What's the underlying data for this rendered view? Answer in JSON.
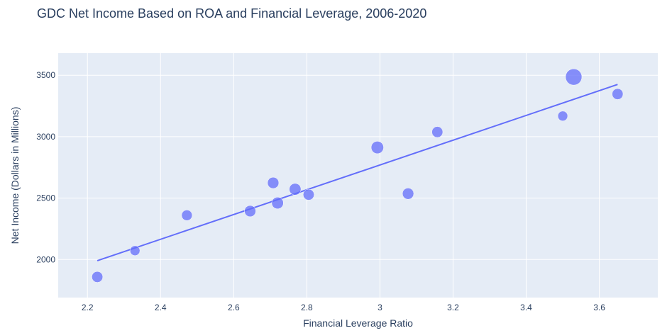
{
  "chart_data": {
    "type": "scatter",
    "title": "GDC Net Income Based on ROA and Financial Leverage, 2006-2020",
    "xlabel": "Financial Leverage Ratio",
    "ylabel": "Net Income (Dollars in Millions)",
    "xlim": [
      2.12,
      3.76
    ],
    "ylim": [
      1690,
      3680
    ],
    "xticks": [
      2.2,
      2.4,
      2.6,
      2.8,
      3,
      3.2,
      3.4,
      3.6
    ],
    "xtick_labels": [
      "2.2",
      "2.4",
      "2.6",
      "2.8",
      "3",
      "3.2",
      "3.4",
      "3.6"
    ],
    "yticks": [
      2000,
      2500,
      3000,
      3500
    ],
    "ytick_labels": [
      "2000",
      "2500",
      "3000",
      "3500"
    ],
    "grid": true,
    "marker_color": "#636efa",
    "line_color": "#636efa",
    "plot_bg": "#e5ecf6",
    "points": [
      {
        "x": 2.227,
        "y": 1858,
        "size": 15.5
      },
      {
        "x": 2.33,
        "y": 2072,
        "size": 14.0
      },
      {
        "x": 2.472,
        "y": 2360,
        "size": 15.0
      },
      {
        "x": 2.645,
        "y": 2394,
        "size": 16.0
      },
      {
        "x": 2.708,
        "y": 2624,
        "size": 16.0
      },
      {
        "x": 2.72,
        "y": 2460,
        "size": 16.5
      },
      {
        "x": 2.768,
        "y": 2572,
        "size": 16.5
      },
      {
        "x": 2.805,
        "y": 2528,
        "size": 15.5
      },
      {
        "x": 2.993,
        "y": 2912,
        "size": 17.5
      },
      {
        "x": 3.077,
        "y": 2536,
        "size": 16.0
      },
      {
        "x": 3.157,
        "y": 3038,
        "size": 15.5
      },
      {
        "x": 3.5,
        "y": 3168,
        "size": 14.0
      },
      {
        "x": 3.53,
        "y": 3486,
        "size": 23.0
      },
      {
        "x": 3.65,
        "y": 3347,
        "size": 15.5
      }
    ],
    "trendline": {
      "x": [
        2.227,
        3.65
      ],
      "y": [
        1990,
        3425
      ]
    }
  }
}
